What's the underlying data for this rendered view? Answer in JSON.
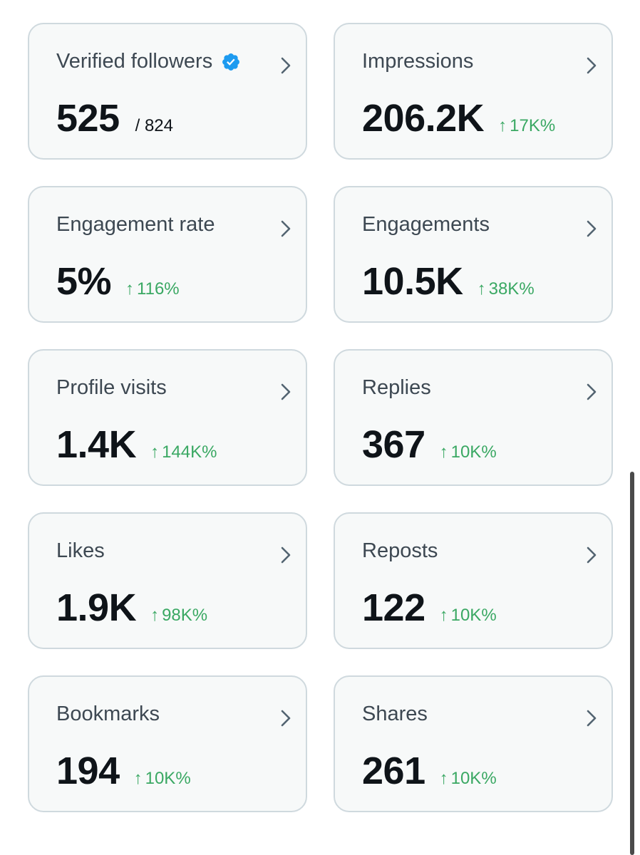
{
  "cards": [
    {
      "title": "Verified followers",
      "value": "525",
      "total": "/ 824",
      "change": "",
      "verified": true
    },
    {
      "title": "Impressions",
      "value": "206.2K",
      "total": "",
      "change": "17K%"
    },
    {
      "title": "Engagement rate",
      "value": "5%",
      "total": "",
      "change": "116%"
    },
    {
      "title": "Engagements",
      "value": "10.5K",
      "total": "",
      "change": "38K%"
    },
    {
      "title": "Profile visits",
      "value": "1.4K",
      "total": "",
      "change": "144K%"
    },
    {
      "title": "Replies",
      "value": "367",
      "total": "",
      "change": "10K%"
    },
    {
      "title": "Likes",
      "value": "1.9K",
      "total": "",
      "change": "98K%"
    },
    {
      "title": "Reposts",
      "value": "122",
      "total": "",
      "change": "10K%"
    },
    {
      "title": "Bookmarks",
      "value": "194",
      "total": "",
      "change": "10K%"
    },
    {
      "title": "Shares",
      "value": "261",
      "total": "",
      "change": "10K%"
    }
  ],
  "icons": {
    "verified": "verified-badge-icon",
    "chevron": "chevron-right-icon",
    "trend": "arrow-up-icon"
  },
  "arrow_glyph": "↑",
  "colors": {
    "card_background": "#f7f9f9",
    "card_border": "#cfd9de",
    "title_text": "#3d4852",
    "value_text": "#0f1419",
    "positive_change": "#3aa863",
    "verified_badge": "#1d9bf0"
  }
}
